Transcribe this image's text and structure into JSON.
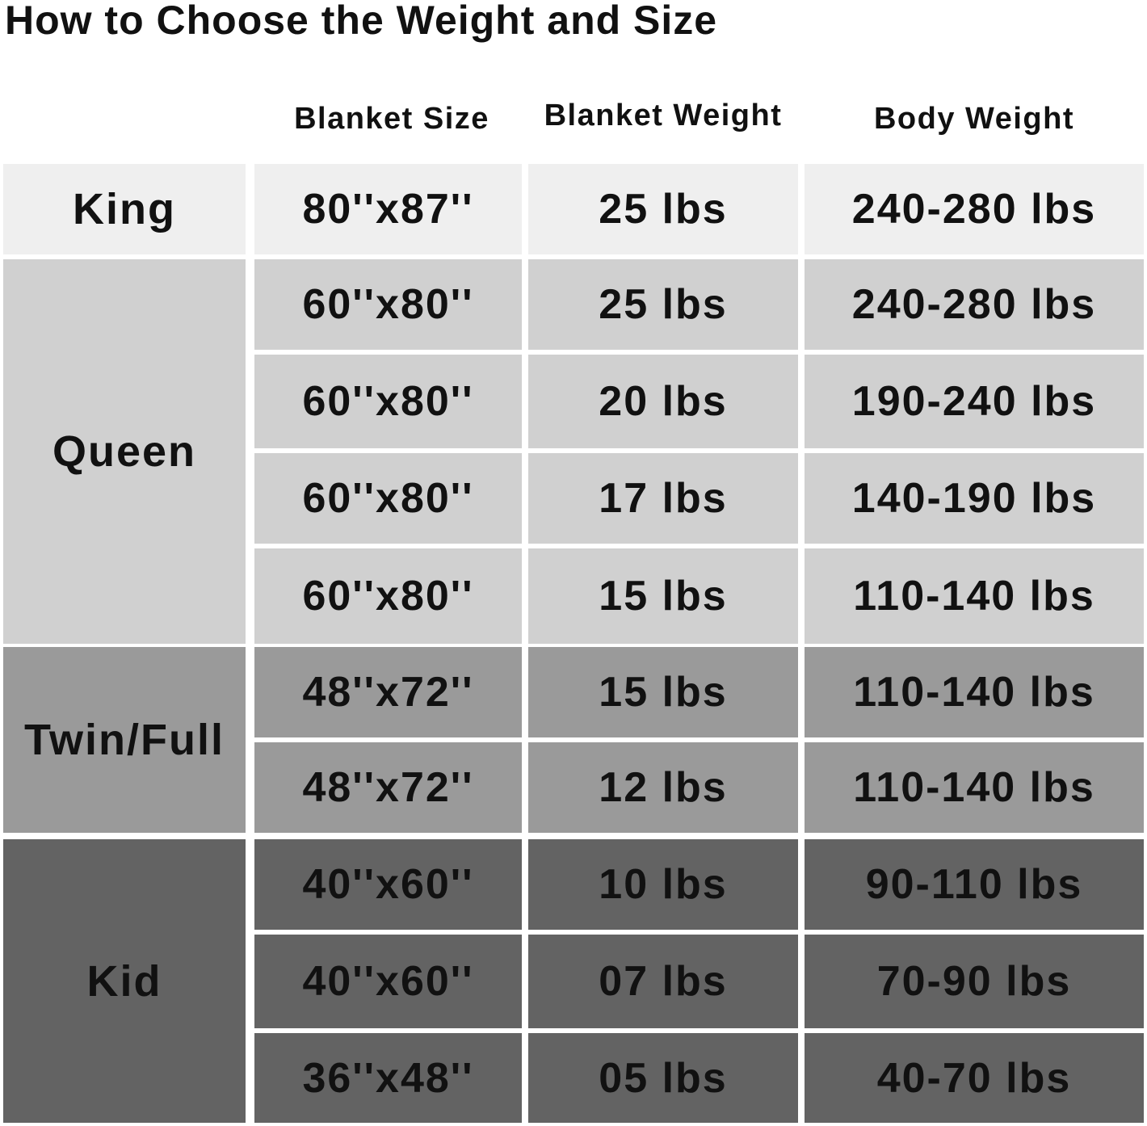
{
  "title": "How to Choose the Weight and Size",
  "headers": [
    "Blanket Size",
    "Blanket Weight",
    "Body Weight"
  ],
  "colors": {
    "King": "#efefef",
    "Queen": "#d0d0d0",
    "Twin/Full": "#9a9a9a",
    "Kid": "#636363"
  },
  "groups": [
    {
      "label": "King",
      "rows": [
        {
          "size": "80''x87''",
          "blanket_weight": "25 lbs",
          "body_weight": "240-280 lbs"
        }
      ]
    },
    {
      "label": "Queen",
      "rows": [
        {
          "size": "60''x80''",
          "blanket_weight": "25 lbs",
          "body_weight": "240-280 lbs"
        },
        {
          "size": "60''x80''",
          "blanket_weight": "20 lbs",
          "body_weight": "190-240 lbs"
        },
        {
          "size": "60''x80''",
          "blanket_weight": "17 lbs",
          "body_weight": "140-190 lbs"
        },
        {
          "size": "60''x80''",
          "blanket_weight": "15 lbs",
          "body_weight": "110-140 lbs"
        }
      ]
    },
    {
      "label": "Twin/Full",
      "rows": [
        {
          "size": "48''x72''",
          "blanket_weight": "15 lbs",
          "body_weight": "110-140 lbs"
        },
        {
          "size": "48''x72''",
          "blanket_weight": "12 lbs",
          "body_weight": "110-140 lbs"
        }
      ]
    },
    {
      "label": "Kid",
      "rows": [
        {
          "size": "40''x60''",
          "blanket_weight": "10 lbs",
          "body_weight": "90-110 lbs"
        },
        {
          "size": "40''x60''",
          "blanket_weight": "07 lbs",
          "body_weight": "70-90 lbs"
        },
        {
          "size": "36''x48''",
          "blanket_weight": "05 lbs",
          "body_weight": "40-70 lbs"
        }
      ]
    }
  ]
}
